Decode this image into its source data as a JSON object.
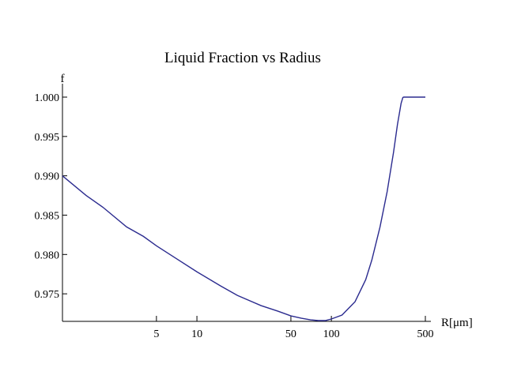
{
  "chart_data": {
    "type": "line",
    "title": "Liquid Fraction vs Radius",
    "ylabel": "f",
    "xlabel": "R",
    "xlabel_unit": "[μm]",
    "x_scale": "log",
    "xlim": [
      1,
      500
    ],
    "ylim": [
      0.9715,
      1.0
    ],
    "x_ticks": [
      5,
      10,
      50,
      100,
      500
    ],
    "y_ticks": [
      0.975,
      0.98,
      0.985,
      0.99,
      0.995,
      1.0
    ],
    "y_tick_labels": [
      "0.975",
      "0.980",
      "0.985",
      "0.990",
      "0.995",
      "1.000"
    ],
    "grid": false,
    "color": "#2b2b8f",
    "series": [
      {
        "x": [
          1,
          1.5,
          2,
          3,
          4,
          5,
          7,
          10,
          15,
          20,
          30,
          40,
          50,
          60,
          70,
          80,
          90,
          100,
          120,
          150,
          180,
          200,
          230,
          260,
          290,
          310,
          330,
          340,
          345,
          350,
          360,
          400,
          450,
          500
        ],
        "y": [
          0.99,
          0.9875,
          0.986,
          0.9835,
          0.9823,
          0.9811,
          0.9795,
          0.9778,
          0.976,
          0.9748,
          0.9735,
          0.9728,
          0.9722,
          0.9719,
          0.9717,
          0.9716,
          0.9716,
          0.9718,
          0.9723,
          0.974,
          0.9768,
          0.9793,
          0.9835,
          0.988,
          0.993,
          0.9965,
          0.9992,
          0.99995,
          1.0,
          1.0,
          1.0,
          1.0,
          1.0,
          1.0
        ]
      }
    ]
  }
}
